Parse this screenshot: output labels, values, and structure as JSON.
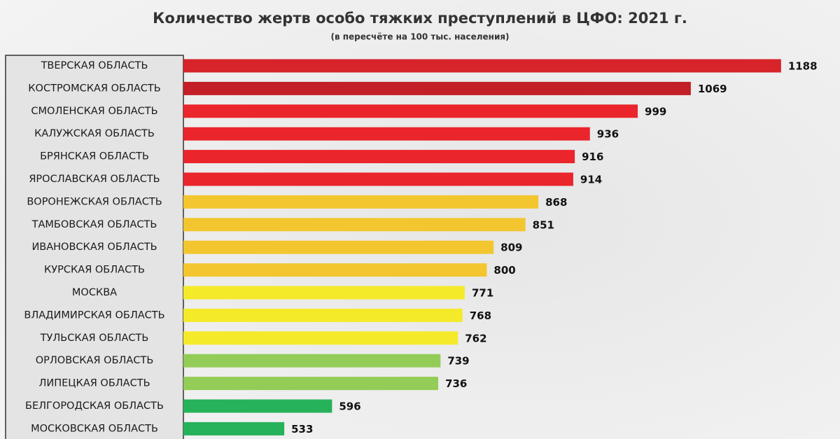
{
  "chart_data": {
    "type": "bar",
    "orientation": "horizontal",
    "title": "Количество жертв особо тяжких преступлений в ЦФО: 2021 г.",
    "subtitle": "(в пересчёте на 100 тыс. населения)",
    "categories": [
      "ТВЕРСКАЯ ОБЛАСТЬ",
      "КОСТРОМСКАЯ ОБЛАСТЬ",
      "СМОЛЕНСКАЯ ОБЛАСТЬ",
      "КАЛУЖСКАЯ ОБЛАСТЬ",
      "БРЯНСКАЯ ОБЛАСТЬ",
      "ЯРОСЛАВСКАЯ ОБЛАСТЬ",
      "ВОРОНЕЖСКАЯ ОБЛАСТЬ",
      "ТАМБОВСКАЯ ОБЛАСТЬ",
      "ИВАНОВСКАЯ ОБЛАСТЬ",
      "КУРСКАЯ ОБЛАСТЬ",
      "МОСКВА",
      "ВЛАДИМИРСКАЯ ОБЛАСТЬ",
      "ТУЛЬСКАЯ ОБЛАСТЬ",
      "ОРЛОВСКАЯ ОБЛАСТЬ",
      "ЛИПЕЦКАЯ ОБЛАСТЬ",
      "БЕЛГОРОДСКАЯ ОБЛАСТЬ",
      "МОСКОВСКАЯ ОБЛАСТЬ"
    ],
    "values": [
      1188,
      1069,
      999,
      936,
      916,
      914,
      868,
      851,
      809,
      800,
      771,
      768,
      762,
      739,
      736,
      596,
      533
    ],
    "colors": [
      "#d7232a",
      "#c21f26",
      "#ea252b",
      "#ea252b",
      "#ea252b",
      "#ea252b",
      "#f3c62f",
      "#f3c62f",
      "#f3c62f",
      "#f3c62f",
      "#f4ea2a",
      "#f4ea2a",
      "#f4ea2a",
      "#93cc57",
      "#93cc57",
      "#26b25a",
      "#26b25a"
    ],
    "xlim": [
      400,
      1250
    ]
  }
}
